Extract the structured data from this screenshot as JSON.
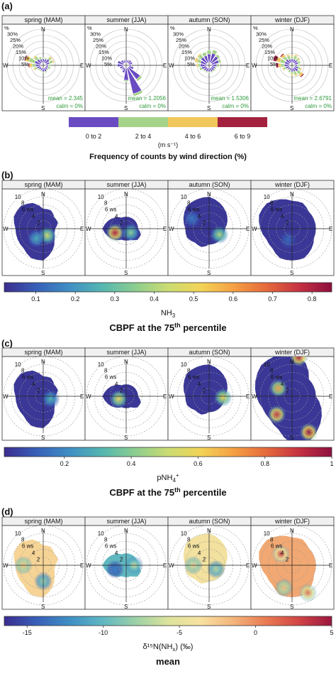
{
  "panels": [
    {
      "letter": "(a)",
      "kind": "windrose",
      "seasons": [
        "spring (MAM)",
        "summer (JJA)",
        "autumn (SON)",
        "winter (DJF)"
      ],
      "freq_ticks": [
        "%",
        "30%",
        "25%",
        "20%",
        "15%",
        "10%",
        "5%"
      ],
      "mean_labels": [
        "mean = 2.345",
        "mean = 1.2056",
        "mean = 1.5306",
        "mean = 2.6791"
      ],
      "calm_label": "calm = 0%",
      "legend": {
        "bins": [
          "0 to 2",
          "2 to 4",
          "4 to 6",
          "6 to 9"
        ],
        "colors": [
          "#6a4bc1",
          "#a6d38a",
          "#f0c75a",
          "#a3213f"
        ],
        "unit": "(m s⁻¹)",
        "title": "Frequency of counts by wind direction (%)"
      }
    },
    {
      "letter": "(b)",
      "kind": "polar",
      "seasons": [
        "spring (MAM)",
        "summer (JJA)",
        "autumn (SON)",
        "winter (DJF)"
      ],
      "colorbar": {
        "ticks": [
          "0.1",
          "0.2",
          "0.3",
          "0.4",
          "0.5",
          "0.6",
          "0.7",
          "0.8"
        ],
        "range": [
          0.02,
          0.85
        ],
        "label_main": "NH",
        "label_sub": "3",
        "label_sup": "",
        "title_main": "CBPF at the 75",
        "title_sup": "th",
        "title_tail": " percentile"
      }
    },
    {
      "letter": "(c)",
      "kind": "polar",
      "seasons": [
        "spring (MAM)",
        "summer (JJA)",
        "autumn (SON)",
        "winter (DJF)"
      ],
      "colorbar": {
        "ticks": [
          "0.2",
          "0.4",
          "0.6",
          "0.8",
          "1"
        ],
        "range": [
          0.02,
          1.0
        ],
        "label_main": "pNH",
        "label_sub": "4",
        "label_sup": "+",
        "title_main": "CBPF at the 75",
        "title_sup": "th",
        "title_tail": " percentile"
      }
    },
    {
      "letter": "(d)",
      "kind": "polar",
      "seasons": [
        "spring (MAM)",
        "summer (JJA)",
        "autumn (SON)",
        "winter (DJF)"
      ],
      "colorbar": {
        "ticks": [
          "-15",
          "-10",
          "-5",
          "0",
          "5"
        ],
        "range": [
          -16.5,
          5
        ],
        "label_main": "δ¹⁵N(NH",
        "label_sub": "x",
        "label_sup": ") (‰)",
        "title_main": "mean",
        "title_sup": "",
        "title_tail": ""
      }
    }
  ],
  "ws_rings": [
    "2",
    "4",
    "6 ws",
    "8",
    "10"
  ],
  "compass": {
    "n": "N",
    "s": "S",
    "e": "E",
    "w": "W"
  },
  "chart_data": [
    {
      "type": "windrose",
      "panel": "a",
      "directions_deg": [
        0,
        22.5,
        45,
        67.5,
        90,
        112.5,
        135,
        157.5,
        180,
        202.5,
        225,
        247.5,
        270,
        292.5,
        315,
        337.5
      ],
      "speed_bins": [
        "0 to 2",
        "2 to 4",
        "4 to 6",
        "6 to 9"
      ],
      "freq_pct": {
        "spring (MAM)": [
          [
            3,
            1,
            0,
            0
          ],
          [
            3,
            1,
            0,
            0
          ],
          [
            4,
            2,
            1,
            0
          ],
          [
            3,
            3,
            1,
            0
          ],
          [
            2,
            2,
            0,
            0
          ],
          [
            2,
            2,
            0,
            0
          ],
          [
            2,
            1,
            0,
            0
          ],
          [
            3,
            1,
            0,
            0
          ],
          [
            3,
            1,
            0,
            0
          ],
          [
            2,
            1,
            0,
            0
          ],
          [
            2,
            1,
            0,
            0
          ],
          [
            3,
            2,
            1,
            0
          ],
          [
            4,
            3,
            2,
            1
          ],
          [
            5,
            5,
            3,
            1
          ],
          [
            4,
            3,
            1,
            0
          ],
          [
            3,
            2,
            0,
            0
          ]
        ],
        "summer (JJA)": [
          [
            2,
            0,
            0,
            0
          ],
          [
            2,
            0,
            0,
            0
          ],
          [
            3,
            0,
            0,
            0
          ],
          [
            3,
            0,
            0,
            0
          ],
          [
            2,
            0,
            0,
            0
          ],
          [
            4,
            0,
            0,
            0
          ],
          [
            12,
            2,
            0,
            0
          ],
          [
            22,
            2,
            0,
            0
          ],
          [
            10,
            1,
            0,
            0
          ],
          [
            4,
            0,
            0,
            0
          ],
          [
            2,
            0,
            0,
            0
          ],
          [
            3,
            0,
            0,
            0
          ],
          [
            5,
            0,
            0,
            0
          ],
          [
            5,
            0,
            0,
            0
          ],
          [
            3,
            0,
            0,
            0
          ],
          [
            2,
            0,
            0,
            0
          ]
        ],
        "autumn (SON)": [
          [
            7,
            3,
            0,
            0
          ],
          [
            8,
            3,
            0,
            0
          ],
          [
            7,
            2,
            0,
            0
          ],
          [
            6,
            2,
            0,
            0
          ],
          [
            4,
            2,
            0,
            0
          ],
          [
            3,
            1,
            0,
            0
          ],
          [
            3,
            1,
            0,
            0
          ],
          [
            3,
            1,
            0,
            0
          ],
          [
            3,
            1,
            0,
            0
          ],
          [
            3,
            1,
            0,
            0
          ],
          [
            3,
            1,
            0,
            0
          ],
          [
            4,
            2,
            0,
            0
          ],
          [
            5,
            2,
            1,
            0
          ],
          [
            5,
            3,
            2,
            0
          ],
          [
            6,
            3,
            1,
            0
          ],
          [
            6,
            3,
            0,
            0
          ]
        ],
        "winter (DJF)": [
          [
            3,
            2,
            1,
            0
          ],
          [
            3,
            3,
            1,
            0
          ],
          [
            3,
            2,
            1,
            0
          ],
          [
            3,
            2,
            0,
            0
          ],
          [
            2,
            2,
            0,
            0
          ],
          [
            3,
            2,
            1,
            0
          ],
          [
            4,
            3,
            2,
            1
          ],
          [
            3,
            3,
            1,
            0
          ],
          [
            3,
            2,
            1,
            0
          ],
          [
            2,
            2,
            0,
            0
          ],
          [
            2,
            1,
            0,
            0
          ],
          [
            3,
            2,
            1,
            0
          ],
          [
            4,
            3,
            2,
            2
          ],
          [
            4,
            4,
            3,
            3
          ],
          [
            4,
            3,
            2,
            1
          ],
          [
            3,
            3,
            1,
            0
          ]
        ]
      },
      "mean_ws": [
        2.345,
        1.2056,
        1.5306,
        2.6791
      ],
      "calm_pct": [
        0,
        0,
        0,
        0
      ],
      "radial_max_pct": 30
    },
    {
      "type": "heatmap",
      "panel": "b",
      "variable": "NH3",
      "statistic": "CBPF at the 75th percentile",
      "color_range": [
        0.02,
        0.85
      ],
      "radial_axis_ws": [
        0,
        12
      ],
      "hotspots": {
        "spring (MAM)": [
          {
            "dir_deg": 150,
            "ws": 2,
            "value": 0.45
          },
          {
            "dir_deg": 215,
            "ws": 3,
            "value": 0.25
          }
        ],
        "summer (JJA)": [
          {
            "dir_deg": 250,
            "ws": 3,
            "value": 0.8
          },
          {
            "dir_deg": 130,
            "ws": 1.5,
            "value": 0.35
          }
        ],
        "autumn (SON)": [
          {
            "dir_deg": 120,
            "ws": 3,
            "value": 0.4
          },
          {
            "dir_deg": 300,
            "ws": 5,
            "value": 0.15
          }
        ],
        "winter (DJF)": [
          {
            "dir_deg": 200,
            "ws": 3,
            "value": 0.12
          }
        ]
      }
    },
    {
      "type": "heatmap",
      "panel": "c",
      "variable": "pNH4+",
      "statistic": "CBPF at the 75th percentile",
      "color_range": [
        0.02,
        1.0
      ],
      "radial_axis_ws": [
        0,
        12
      ],
      "hotspots": {
        "spring (MAM)": [
          {
            "dir_deg": 110,
            "ws": 2,
            "value": 0.3
          }
        ],
        "summer (JJA)": [
          {
            "dir_deg": 250,
            "ws": 2,
            "value": 0.6
          }
        ],
        "autumn (SON)": [
          {
            "dir_deg": 95,
            "ws": 3.5,
            "value": 0.6
          }
        ],
        "winter (DJF)": [
          {
            "dir_deg": 10,
            "ws": 10,
            "value": 0.95
          },
          {
            "dir_deg": 220,
            "ws": 6,
            "value": 0.9
          },
          {
            "dir_deg": 155,
            "ws": 10,
            "value": 1.0
          },
          {
            "dir_deg": 300,
            "ws": 4,
            "value": 0.7
          }
        ]
      }
    },
    {
      "type": "heatmap",
      "panel": "d",
      "variable": "δ15N(NHx) (‰)",
      "statistic": "mean",
      "color_range": [
        -16.5,
        5
      ],
      "radial_axis_ws": [
        0,
        12
      ],
      "hotspots": {
        "spring (MAM)": [
          {
            "dir_deg": 270,
            "ws": 5,
            "value": -2
          },
          {
            "dir_deg": 180,
            "ws": 4,
            "value": -8
          }
        ],
        "summer (JJA)": [
          {
            "dir_deg": 250,
            "ws": 3,
            "value": -13
          },
          {
            "dir_deg": 90,
            "ws": 2,
            "value": -6
          }
        ],
        "autumn (SON)": [
          {
            "dir_deg": 270,
            "ws": 4,
            "value": -3
          },
          {
            "dir_deg": 120,
            "ws": 2,
            "value": -7
          }
        ],
        "winter (DJF)": [
          {
            "dir_deg": 315,
            "ws": 4,
            "value": 3
          },
          {
            "dir_deg": 150,
            "ws": 8,
            "value": 1
          },
          {
            "dir_deg": 200,
            "ws": 6,
            "value": -2
          }
        ]
      }
    }
  ]
}
